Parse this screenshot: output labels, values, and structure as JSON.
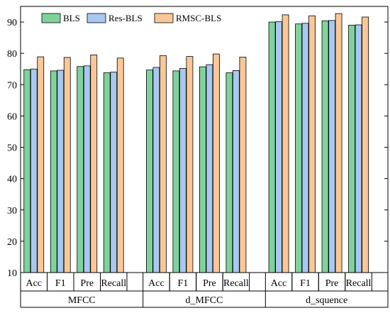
{
  "chart_data": {
    "type": "bar",
    "title": "",
    "xlabel": "",
    "ylabel": "",
    "ylim": [
      10,
      95
    ],
    "yticks": [
      10,
      20,
      30,
      40,
      50,
      60,
      70,
      80,
      90
    ],
    "grid": false,
    "legend_position": "top-left",
    "groups": [
      {
        "label": "MFCC",
        "categories": [
          "Acc",
          "F1",
          "Pre",
          "Recall"
        ]
      },
      {
        "label": "d_MFCC",
        "categories": [
          "Acc",
          "F1",
          "Pre",
          "Recall"
        ]
      },
      {
        "label": "d_squence",
        "categories": [
          "Acc",
          "F1",
          "Pre",
          "Recall"
        ]
      }
    ],
    "series": [
      {
        "name": "BLS",
        "color": "#7fd39a",
        "values": [
          74.8,
          74.4,
          75.8,
          73.8,
          74.7,
          74.4,
          75.7,
          73.8,
          90.0,
          89.4,
          90.4,
          89.0
        ]
      },
      {
        "name": "Res-BLS",
        "color": "#a8c8f0",
        "values": [
          75.0,
          74.6,
          76.0,
          74.0,
          75.5,
          75.2,
          76.4,
          74.5,
          90.1,
          89.6,
          90.5,
          89.1
        ]
      },
      {
        "name": "RMSC-BLS",
        "color": "#f9c898",
        "values": [
          78.9,
          78.7,
          79.5,
          78.5,
          79.3,
          79.0,
          79.8,
          78.8,
          92.3,
          92.0,
          92.7,
          91.6
        ]
      }
    ]
  }
}
